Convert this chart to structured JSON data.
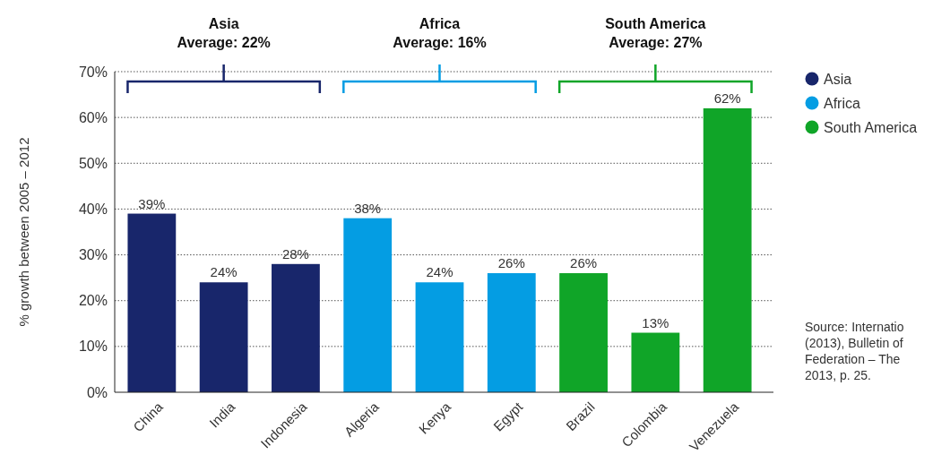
{
  "chart_data": {
    "type": "bar",
    "ylabel": "% growth between 2005 – 2012",
    "categories": [
      "China",
      "India",
      "Indonesia",
      "Algeria",
      "Kenya",
      "Egypt",
      "Brazil",
      "Colombia",
      "Venezuela"
    ],
    "series": [
      {
        "name": "Asia",
        "color": "#18266b",
        "values": [
          39,
          24,
          28,
          null,
          null,
          null,
          null,
          null,
          null
        ],
        "value_labels": [
          "39%",
          "24%",
          "28%",
          null,
          null,
          null,
          null,
          null,
          null
        ]
      },
      {
        "name": "Africa",
        "color": "#049de3",
        "values": [
          null,
          null,
          null,
          38,
          24,
          26,
          null,
          null,
          null
        ],
        "value_labels": [
          null,
          null,
          null,
          "38%",
          "24%",
          "26%",
          null,
          null,
          null
        ]
      },
      {
        "name": "South America",
        "color": "#10a528",
        "values": [
          null,
          null,
          null,
          null,
          null,
          null,
          26,
          13,
          62
        ],
        "value_labels": [
          null,
          null,
          null,
          null,
          null,
          null,
          "26%",
          "13%",
          "62%"
        ]
      }
    ],
    "ylim": [
      0,
      70
    ],
    "yticks": [
      {
        "value": 0,
        "label": "0%"
      },
      {
        "value": 10,
        "label": "10%"
      },
      {
        "value": 20,
        "label": "20%"
      },
      {
        "value": 30,
        "label": "30%"
      },
      {
        "value": 40,
        "label": "40%"
      },
      {
        "value": 50,
        "label": "50%"
      },
      {
        "value": 60,
        "label": "60%"
      },
      {
        "value": 70,
        "label": "70%"
      }
    ],
    "grid": "y",
    "legend": "right",
    "annotations": [
      "Asia\nAverage: 22%",
      "Africa\nAverage: 16%",
      "South America\nAverage: 27%",
      "Source: Internatio\n(2013), Bulletin of\nFederation – The\n2013, p. 25."
    ]
  }
}
